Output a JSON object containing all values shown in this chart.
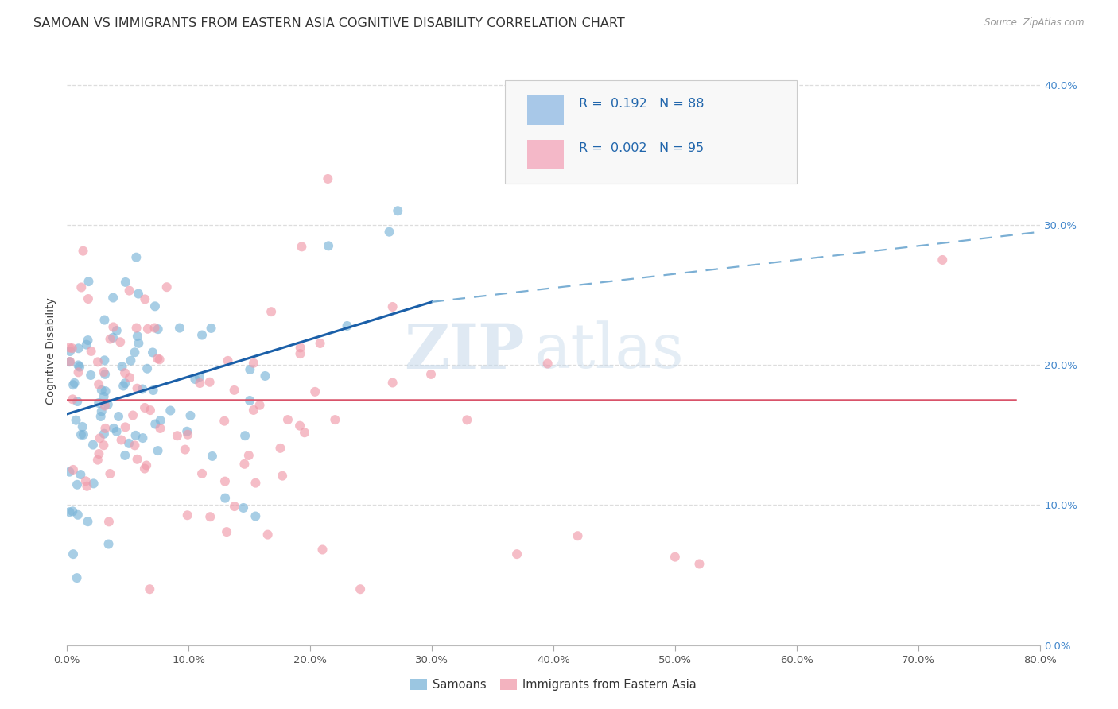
{
  "title": "SAMOAN VS IMMIGRANTS FROM EASTERN ASIA COGNITIVE DISABILITY CORRELATION CHART",
  "source": "Source: ZipAtlas.com",
  "xlim": [
    0.0,
    0.8
  ],
  "ylim": [
    0.0,
    0.42
  ],
  "ylabel": "Cognitive Disability",
  "samoans_color": "#7ab4d8",
  "immigrants_color": "#f09aaa",
  "trendline_samoan_color": "#1a5fa8",
  "trendline_immigrant_color": "#d9546a",
  "background_color": "#ffffff",
  "watermark_zip": "ZIP",
  "watermark_atlas": "atlas",
  "legend_blue_color": "#a8c8e8",
  "legend_pink_color": "#f4b8c8",
  "legend_text_color": "#2166ac",
  "grid_color": "#dddddd",
  "title_fontsize": 11.5,
  "axis_label_fontsize": 10,
  "tick_fontsize": 9.5,
  "right_tick_color": "#4488cc",
  "x_tick_positions": [
    0.0,
    0.1,
    0.2,
    0.3,
    0.4,
    0.5,
    0.6,
    0.7,
    0.8
  ],
  "y_tick_positions": [
    0.0,
    0.1,
    0.2,
    0.3,
    0.4
  ],
  "samoan_trendline_x_start": 0.0,
  "samoan_trendline_x_solid_end": 0.3,
  "samoan_trendline_x_dashed_end": 0.8,
  "samoan_trendline_y_start": 0.165,
  "samoan_trendline_y_solid_end": 0.245,
  "samoan_trendline_y_dashed_end": 0.295,
  "immigrant_trendline_y": 0.175
}
